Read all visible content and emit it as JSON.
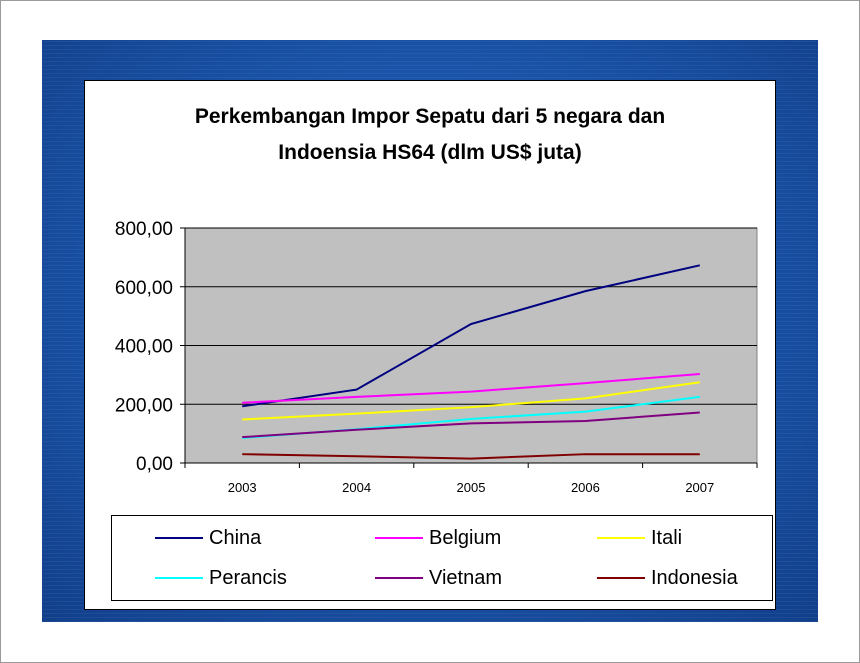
{
  "chart_data": {
    "type": "line",
    "title_lines": [
      "Perkembangan Impor Sepatu dari 5 negara dan",
      "Indoensia HS64 (dlm US$ juta)"
    ],
    "categories": [
      "2003",
      "2004",
      "2005",
      "2006",
      "2007"
    ],
    "y_ticks": [
      "800,00",
      "600,00",
      "400,00",
      "200,00",
      "0,00"
    ],
    "ylim": [
      0,
      800
    ],
    "grid": true,
    "legend_position": "bottom",
    "plot_background": "#c0c0c0",
    "series": [
      {
        "name": "China",
        "color": "#000080",
        "values": [
          193,
          250,
          473,
          585,
          673
        ]
      },
      {
        "name": "Belgium",
        "color": "#ff00ff",
        "values": [
          205,
          225,
          243,
          272,
          303
        ]
      },
      {
        "name": "Itali",
        "color": "#ffff00",
        "values": [
          148,
          168,
          190,
          220,
          275
        ]
      },
      {
        "name": "Perancis",
        "color": "#00ffff",
        "values": [
          85,
          115,
          150,
          175,
          225
        ]
      },
      {
        "name": "Vietnam",
        "color": "#800080",
        "values": [
          88,
          113,
          135,
          143,
          172
        ]
      },
      {
        "name": "Indonesia",
        "color": "#800000",
        "values": [
          30,
          23,
          15,
          30,
          30
        ]
      }
    ]
  }
}
